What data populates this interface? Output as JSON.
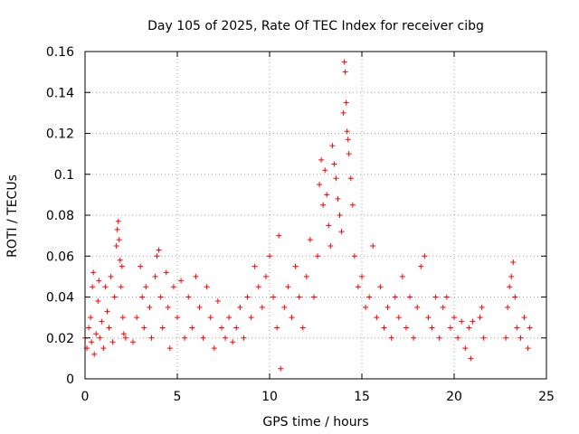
{
  "chart_data": {
    "type": "scatter",
    "title": "Day 105 of 2025, Rate Of TEC Index for receiver cibg",
    "xlabel": "GPS time / hours",
    "ylabel": "ROTI / TECUs",
    "xlim": [
      0,
      25
    ],
    "ylim": [
      0,
      0.16
    ],
    "xticks": [
      0,
      5,
      10,
      15,
      20,
      25
    ],
    "xtick_labels": [
      "0",
      "5",
      "10",
      "15",
      "20",
      "25"
    ],
    "yticks": [
      0,
      0.02,
      0.04,
      0.06,
      0.08,
      0.1,
      0.12,
      0.14,
      0.16
    ],
    "ytick_labels": [
      "0",
      "0.02",
      "0.04",
      "0.06",
      "0.08",
      "0.1",
      "0.12",
      "0.14",
      "0.16"
    ],
    "grid": true,
    "marker": "+",
    "marker_color": "#ff0000",
    "series": [
      {
        "name": "ROTI",
        "color": "#ff0000",
        "points": [
          [
            0.0,
            0.02
          ],
          [
            0.1,
            0.015
          ],
          [
            0.2,
            0.025
          ],
          [
            0.3,
            0.03
          ],
          [
            0.35,
            0.018
          ],
          [
            0.4,
            0.045
          ],
          [
            0.45,
            0.052
          ],
          [
            0.5,
            0.012
          ],
          [
            0.6,
            0.022
          ],
          [
            0.7,
            0.038
          ],
          [
            0.75,
            0.048
          ],
          [
            0.8,
            0.02
          ],
          [
            0.9,
            0.028
          ],
          [
            1.0,
            0.015
          ],
          [
            1.1,
            0.045
          ],
          [
            1.2,
            0.033
          ],
          [
            1.3,
            0.025
          ],
          [
            1.4,
            0.05
          ],
          [
            1.5,
            0.018
          ],
          [
            1.6,
            0.04
          ],
          [
            1.7,
            0.065
          ],
          [
            1.75,
            0.073
          ],
          [
            1.8,
            0.077
          ],
          [
            1.85,
            0.068
          ],
          [
            1.9,
            0.058
          ],
          [
            1.95,
            0.045
          ],
          [
            2.0,
            0.055
          ],
          [
            2.05,
            0.03
          ],
          [
            2.1,
            0.022
          ],
          [
            2.2,
            0.02
          ],
          [
            2.6,
            0.018
          ],
          [
            2.8,
            0.03
          ],
          [
            3.0,
            0.055
          ],
          [
            3.1,
            0.04
          ],
          [
            3.2,
            0.025
          ],
          [
            3.3,
            0.045
          ],
          [
            3.5,
            0.035
          ],
          [
            3.6,
            0.02
          ],
          [
            3.8,
            0.05
          ],
          [
            3.9,
            0.06
          ],
          [
            4.0,
            0.063
          ],
          [
            4.1,
            0.04
          ],
          [
            4.2,
            0.025
          ],
          [
            4.4,
            0.052
          ],
          [
            4.5,
            0.035
          ],
          [
            4.6,
            0.015
          ],
          [
            4.8,
            0.045
          ],
          [
            5.0,
            0.03
          ],
          [
            5.2,
            0.048
          ],
          [
            5.4,
            0.02
          ],
          [
            5.6,
            0.04
          ],
          [
            5.8,
            0.025
          ],
          [
            6.0,
            0.05
          ],
          [
            6.2,
            0.035
          ],
          [
            6.4,
            0.02
          ],
          [
            6.6,
            0.045
          ],
          [
            6.8,
            0.03
          ],
          [
            7.0,
            0.015
          ],
          [
            7.2,
            0.038
          ],
          [
            7.4,
            0.025
          ],
          [
            7.6,
            0.02
          ],
          [
            7.8,
            0.03
          ],
          [
            8.0,
            0.018
          ],
          [
            8.2,
            0.025
          ],
          [
            8.4,
            0.035
          ],
          [
            8.6,
            0.02
          ],
          [
            8.8,
            0.04
          ],
          [
            9.0,
            0.03
          ],
          [
            9.2,
            0.055
          ],
          [
            9.4,
            0.045
          ],
          [
            9.6,
            0.035
          ],
          [
            9.8,
            0.05
          ],
          [
            10.0,
            0.06
          ],
          [
            10.2,
            0.04
          ],
          [
            10.4,
            0.025
          ],
          [
            10.5,
            0.07
          ],
          [
            10.6,
            0.005
          ],
          [
            10.8,
            0.035
          ],
          [
            11.0,
            0.045
          ],
          [
            11.2,
            0.03
          ],
          [
            11.4,
            0.055
          ],
          [
            11.6,
            0.04
          ],
          [
            11.8,
            0.025
          ],
          [
            12.0,
            0.05
          ],
          [
            12.2,
            0.068
          ],
          [
            12.4,
            0.04
          ],
          [
            12.6,
            0.06
          ],
          [
            12.7,
            0.095
          ],
          [
            12.8,
            0.107
          ],
          [
            12.9,
            0.085
          ],
          [
            13.0,
            0.102
          ],
          [
            13.1,
            0.09
          ],
          [
            13.2,
            0.075
          ],
          [
            13.3,
            0.065
          ],
          [
            13.4,
            0.114
          ],
          [
            13.5,
            0.105
          ],
          [
            13.6,
            0.098
          ],
          [
            13.7,
            0.088
          ],
          [
            13.8,
            0.08
          ],
          [
            13.9,
            0.072
          ],
          [
            14.0,
            0.13
          ],
          [
            14.05,
            0.155
          ],
          [
            14.1,
            0.15
          ],
          [
            14.15,
            0.135
          ],
          [
            14.2,
            0.121
          ],
          [
            14.25,
            0.117
          ],
          [
            14.3,
            0.11
          ],
          [
            14.4,
            0.098
          ],
          [
            14.5,
            0.085
          ],
          [
            14.6,
            0.06
          ],
          [
            14.8,
            0.045
          ],
          [
            15.0,
            0.05
          ],
          [
            15.2,
            0.035
          ],
          [
            15.4,
            0.04
          ],
          [
            15.6,
            0.065
          ],
          [
            15.8,
            0.03
          ],
          [
            16.0,
            0.045
          ],
          [
            16.2,
            0.025
          ],
          [
            16.4,
            0.035
          ],
          [
            16.6,
            0.02
          ],
          [
            16.8,
            0.04
          ],
          [
            17.0,
            0.03
          ],
          [
            17.2,
            0.05
          ],
          [
            17.4,
            0.025
          ],
          [
            17.6,
            0.04
          ],
          [
            17.8,
            0.02
          ],
          [
            18.0,
            0.035
          ],
          [
            18.2,
            0.055
          ],
          [
            18.4,
            0.06
          ],
          [
            18.6,
            0.03
          ],
          [
            18.8,
            0.025
          ],
          [
            19.0,
            0.04
          ],
          [
            19.2,
            0.02
          ],
          [
            19.4,
            0.035
          ],
          [
            19.6,
            0.04
          ],
          [
            19.8,
            0.025
          ],
          [
            20.0,
            0.03
          ],
          [
            20.2,
            0.02
          ],
          [
            20.4,
            0.028
          ],
          [
            20.6,
            0.015
          ],
          [
            20.8,
            0.025
          ],
          [
            20.9,
            0.01
          ],
          [
            21.0,
            0.028
          ],
          [
            21.4,
            0.03
          ],
          [
            21.5,
            0.035
          ],
          [
            21.6,
            0.02
          ],
          [
            22.8,
            0.02
          ],
          [
            22.9,
            0.035
          ],
          [
            23.0,
            0.045
          ],
          [
            23.1,
            0.05
          ],
          [
            23.2,
            0.057
          ],
          [
            23.3,
            0.04
          ],
          [
            23.4,
            0.025
          ],
          [
            23.6,
            0.02
          ],
          [
            23.8,
            0.03
          ],
          [
            24.0,
            0.015
          ],
          [
            24.1,
            0.025
          ]
        ]
      }
    ]
  }
}
